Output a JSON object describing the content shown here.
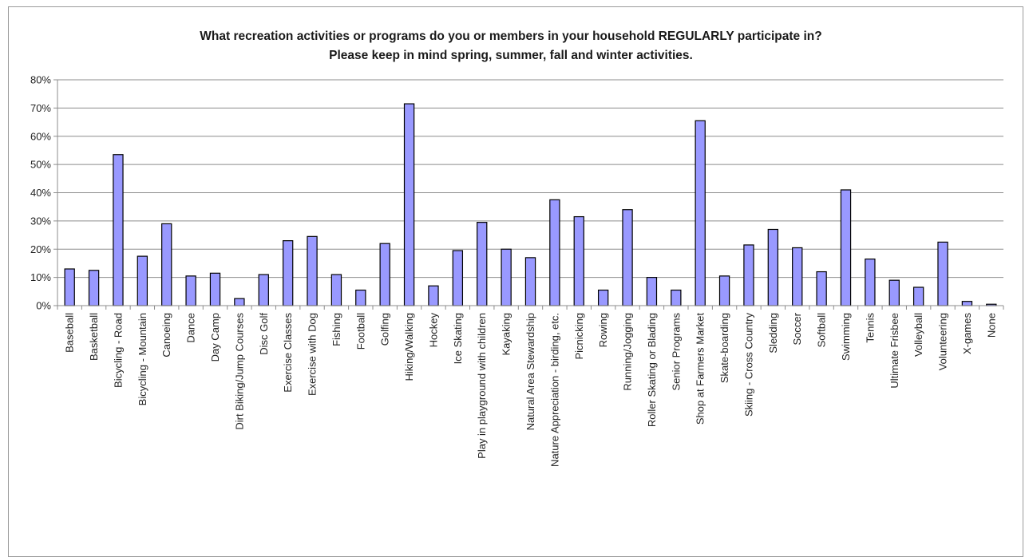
{
  "chart_data": {
    "type": "bar",
    "title": "What recreation activities or programs do you or members in your household REGULARLY participate in?",
    "subtitle": "Please keep in mind spring, summer, fall and winter activities.",
    "xlabel": "",
    "ylabel": "",
    "ylim": [
      0,
      0.8
    ],
    "yticks": [
      0,
      0.1,
      0.2,
      0.3,
      0.4,
      0.5,
      0.6,
      0.7,
      0.8
    ],
    "ytick_labels": [
      "0%",
      "10%",
      "20%",
      "30%",
      "40%",
      "50%",
      "60%",
      "70%",
      "80%"
    ],
    "grid": true,
    "legend": "none",
    "bar_color": "#9999ff",
    "bar_edge_color": "#000000",
    "categories": [
      "Baseball",
      "Basketball",
      "Bicycling - Road",
      "Bicycling - Mountain",
      "Canoeing",
      "Dance",
      "Day Camp",
      "Dirt Biking/Jump Courses",
      "Disc Golf",
      "Exercise Classes",
      "Exercise with Dog",
      "Fishing",
      "Football",
      "Golfing",
      "Hiking/Walking",
      "Hockey",
      "Ice Skating",
      "Play in playground with children",
      "Kayaking",
      "Natural Area Stewardship",
      "Nature Appreciation - birding, etc.",
      "Picnicking",
      "Rowing",
      "Running/Jogging",
      "Roller Skating or Blading",
      "Senior Programs",
      "Shop at Farmers Market",
      "Skate-boarding",
      "Skiing - Cross Country",
      "Sledding",
      "Soccer",
      "Softball",
      "Swimming",
      "Tennis",
      "Ultimate Frisbee",
      "Volleyball",
      "Volunteering",
      "X-games",
      "None"
    ],
    "values": [
      0.13,
      0.125,
      0.535,
      0.175,
      0.29,
      0.105,
      0.115,
      0.025,
      0.11,
      0.23,
      0.245,
      0.11,
      0.055,
      0.22,
      0.715,
      0.07,
      0.195,
      0.295,
      0.2,
      0.17,
      0.375,
      0.315,
      0.055,
      0.34,
      0.1,
      0.055,
      0.655,
      0.105,
      0.215,
      0.27,
      0.205,
      0.12,
      0.41,
      0.165,
      0.09,
      0.065,
      0.225,
      0.015,
      0.005
    ]
  }
}
